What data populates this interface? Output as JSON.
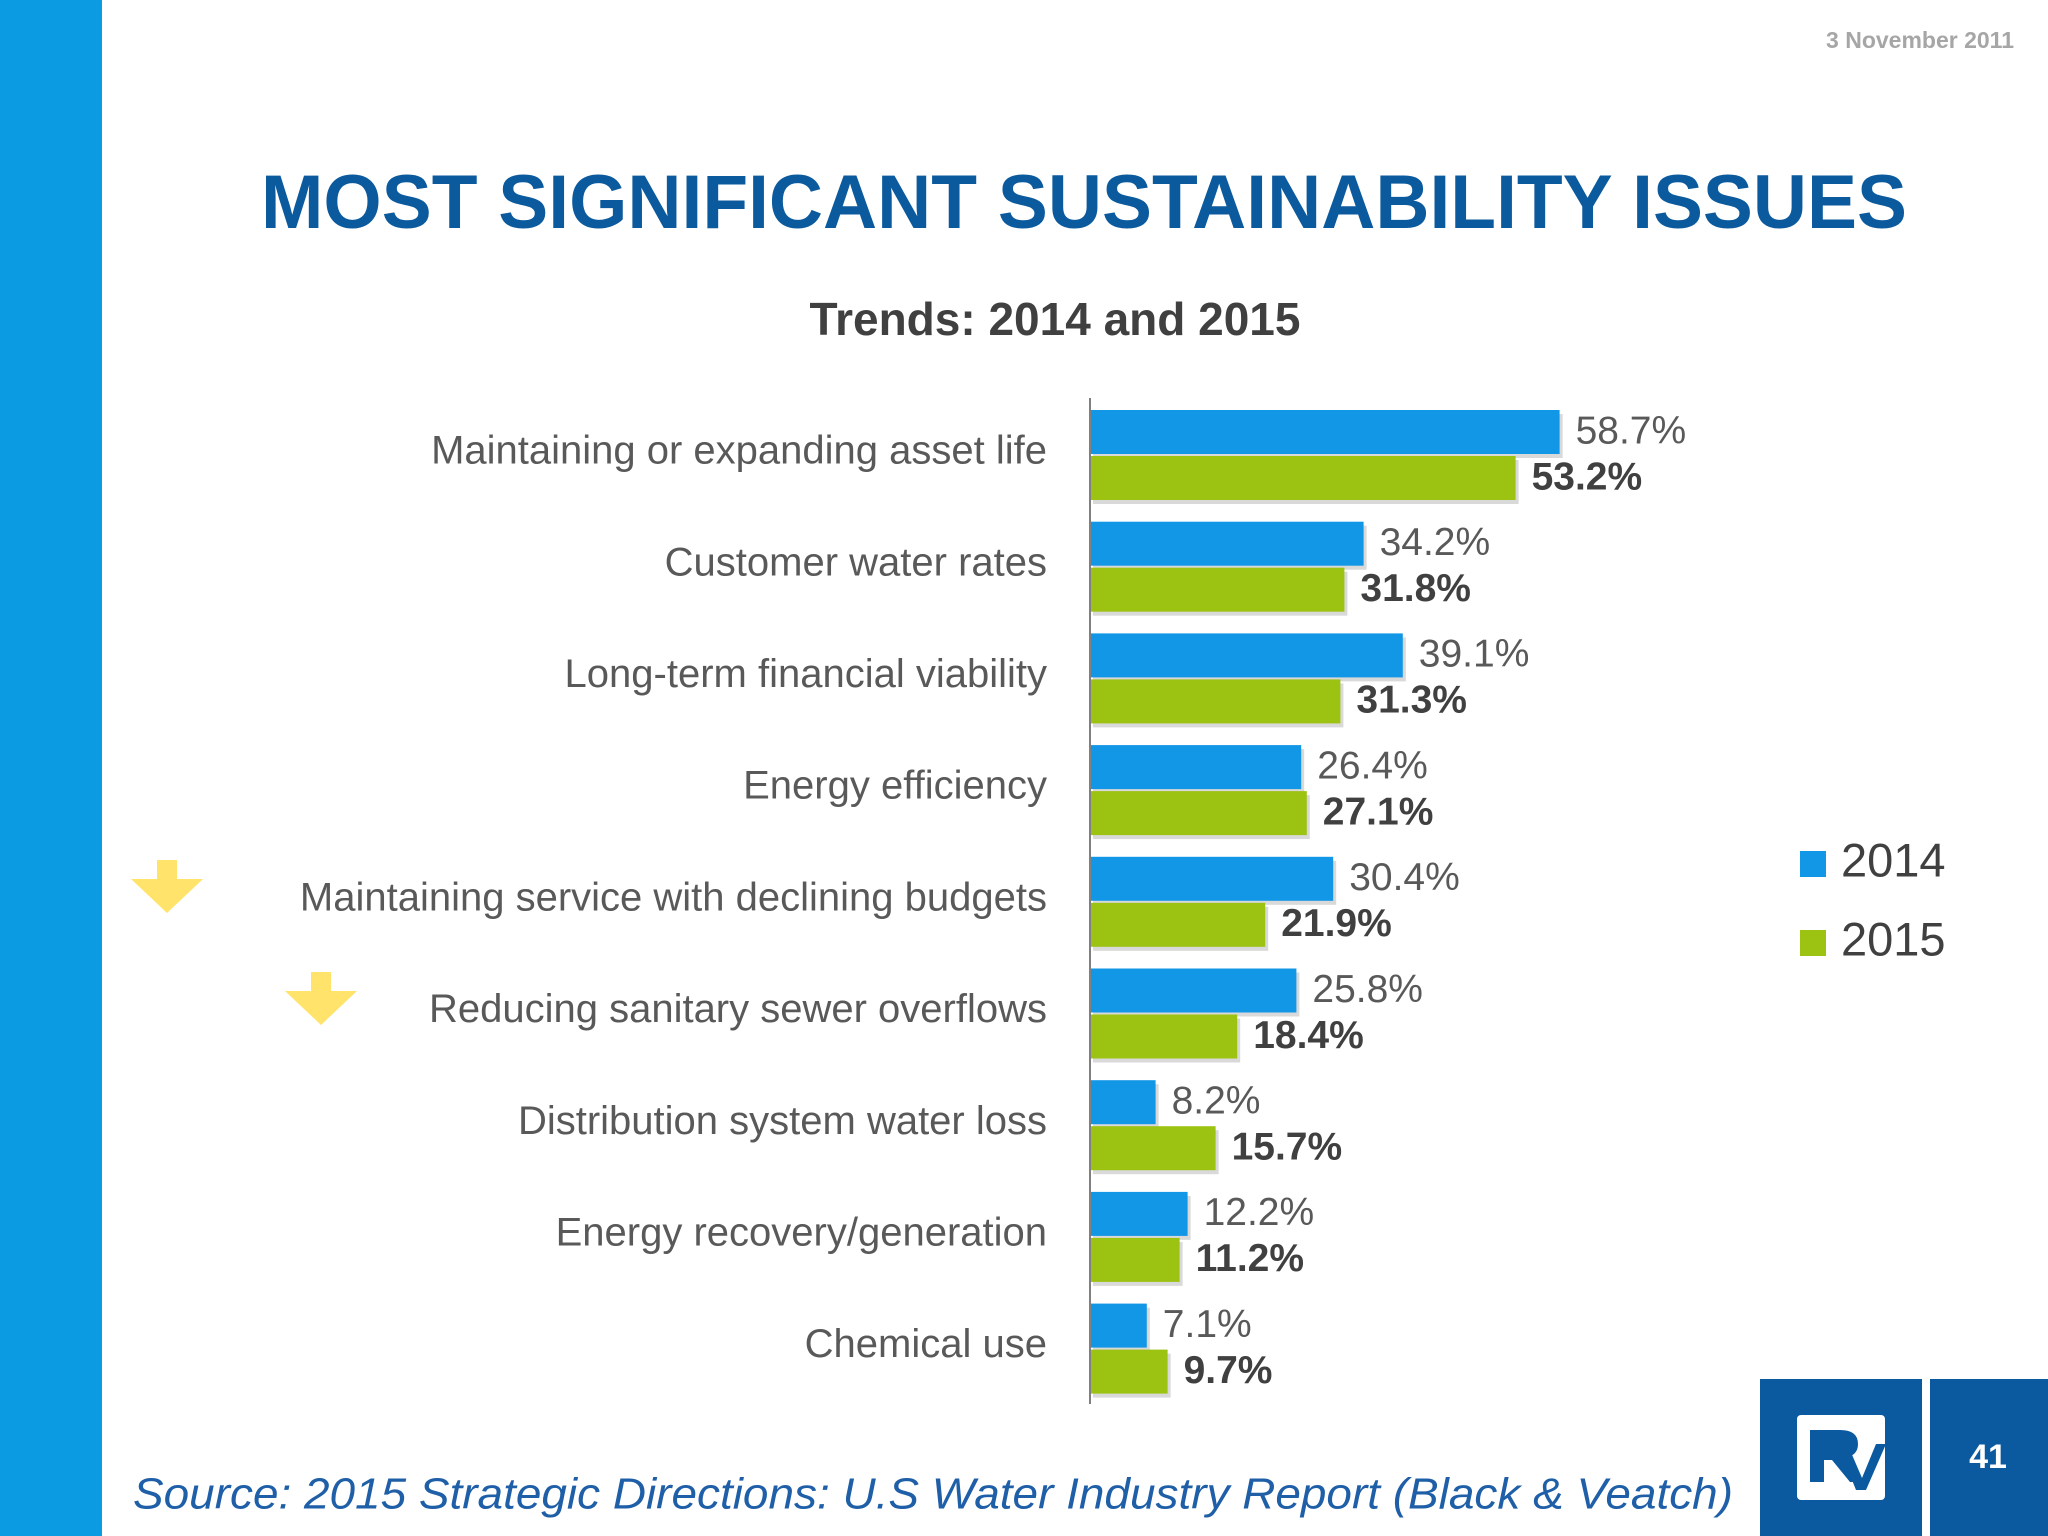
{
  "date": "3 November 2011",
  "source": "Source: 2015 Strategic Directions: U.S Water Industry Report (Black & Veatch)",
  "page_number": "41",
  "chart_data": {
    "type": "bar",
    "orientation": "horizontal",
    "title": "MOST SIGNIFICANT SUSTAINABILITY ISSUES",
    "subtitle": "Trends: 2014 and 2015",
    "categories": [
      "Maintaining or expanding asset life",
      "Customer water rates",
      "Long-term financial viability",
      "Energy efficiency",
      "Maintaining service with declining budgets",
      "Reducing sanitary sewer overflows",
      "Distribution system water loss",
      "Energy recovery/generation",
      "Chemical use"
    ],
    "series": [
      {
        "name": "2014",
        "color": "#1296e6",
        "values": [
          58.7,
          34.2,
          39.1,
          26.4,
          30.4,
          25.8,
          8.2,
          12.2,
          7.1
        ],
        "value_labels": [
          "58.7%",
          "34.2%",
          "39.1%",
          "26.4%",
          "30.4%",
          "25.8%",
          "8.2%",
          "12.2%",
          "7.1%"
        ]
      },
      {
        "name": "2015",
        "color": "#9cc212",
        "values": [
          53.2,
          31.8,
          31.3,
          27.1,
          21.9,
          18.4,
          15.7,
          11.2,
          9.7
        ],
        "value_labels": [
          "53.2%",
          "31.8%",
          "31.3%",
          "27.1%",
          "21.9%",
          "18.4%",
          "15.7%",
          "11.2%",
          "9.7%"
        ]
      }
    ],
    "xlim": [
      0,
      100
    ],
    "legend": "right"
  }
}
